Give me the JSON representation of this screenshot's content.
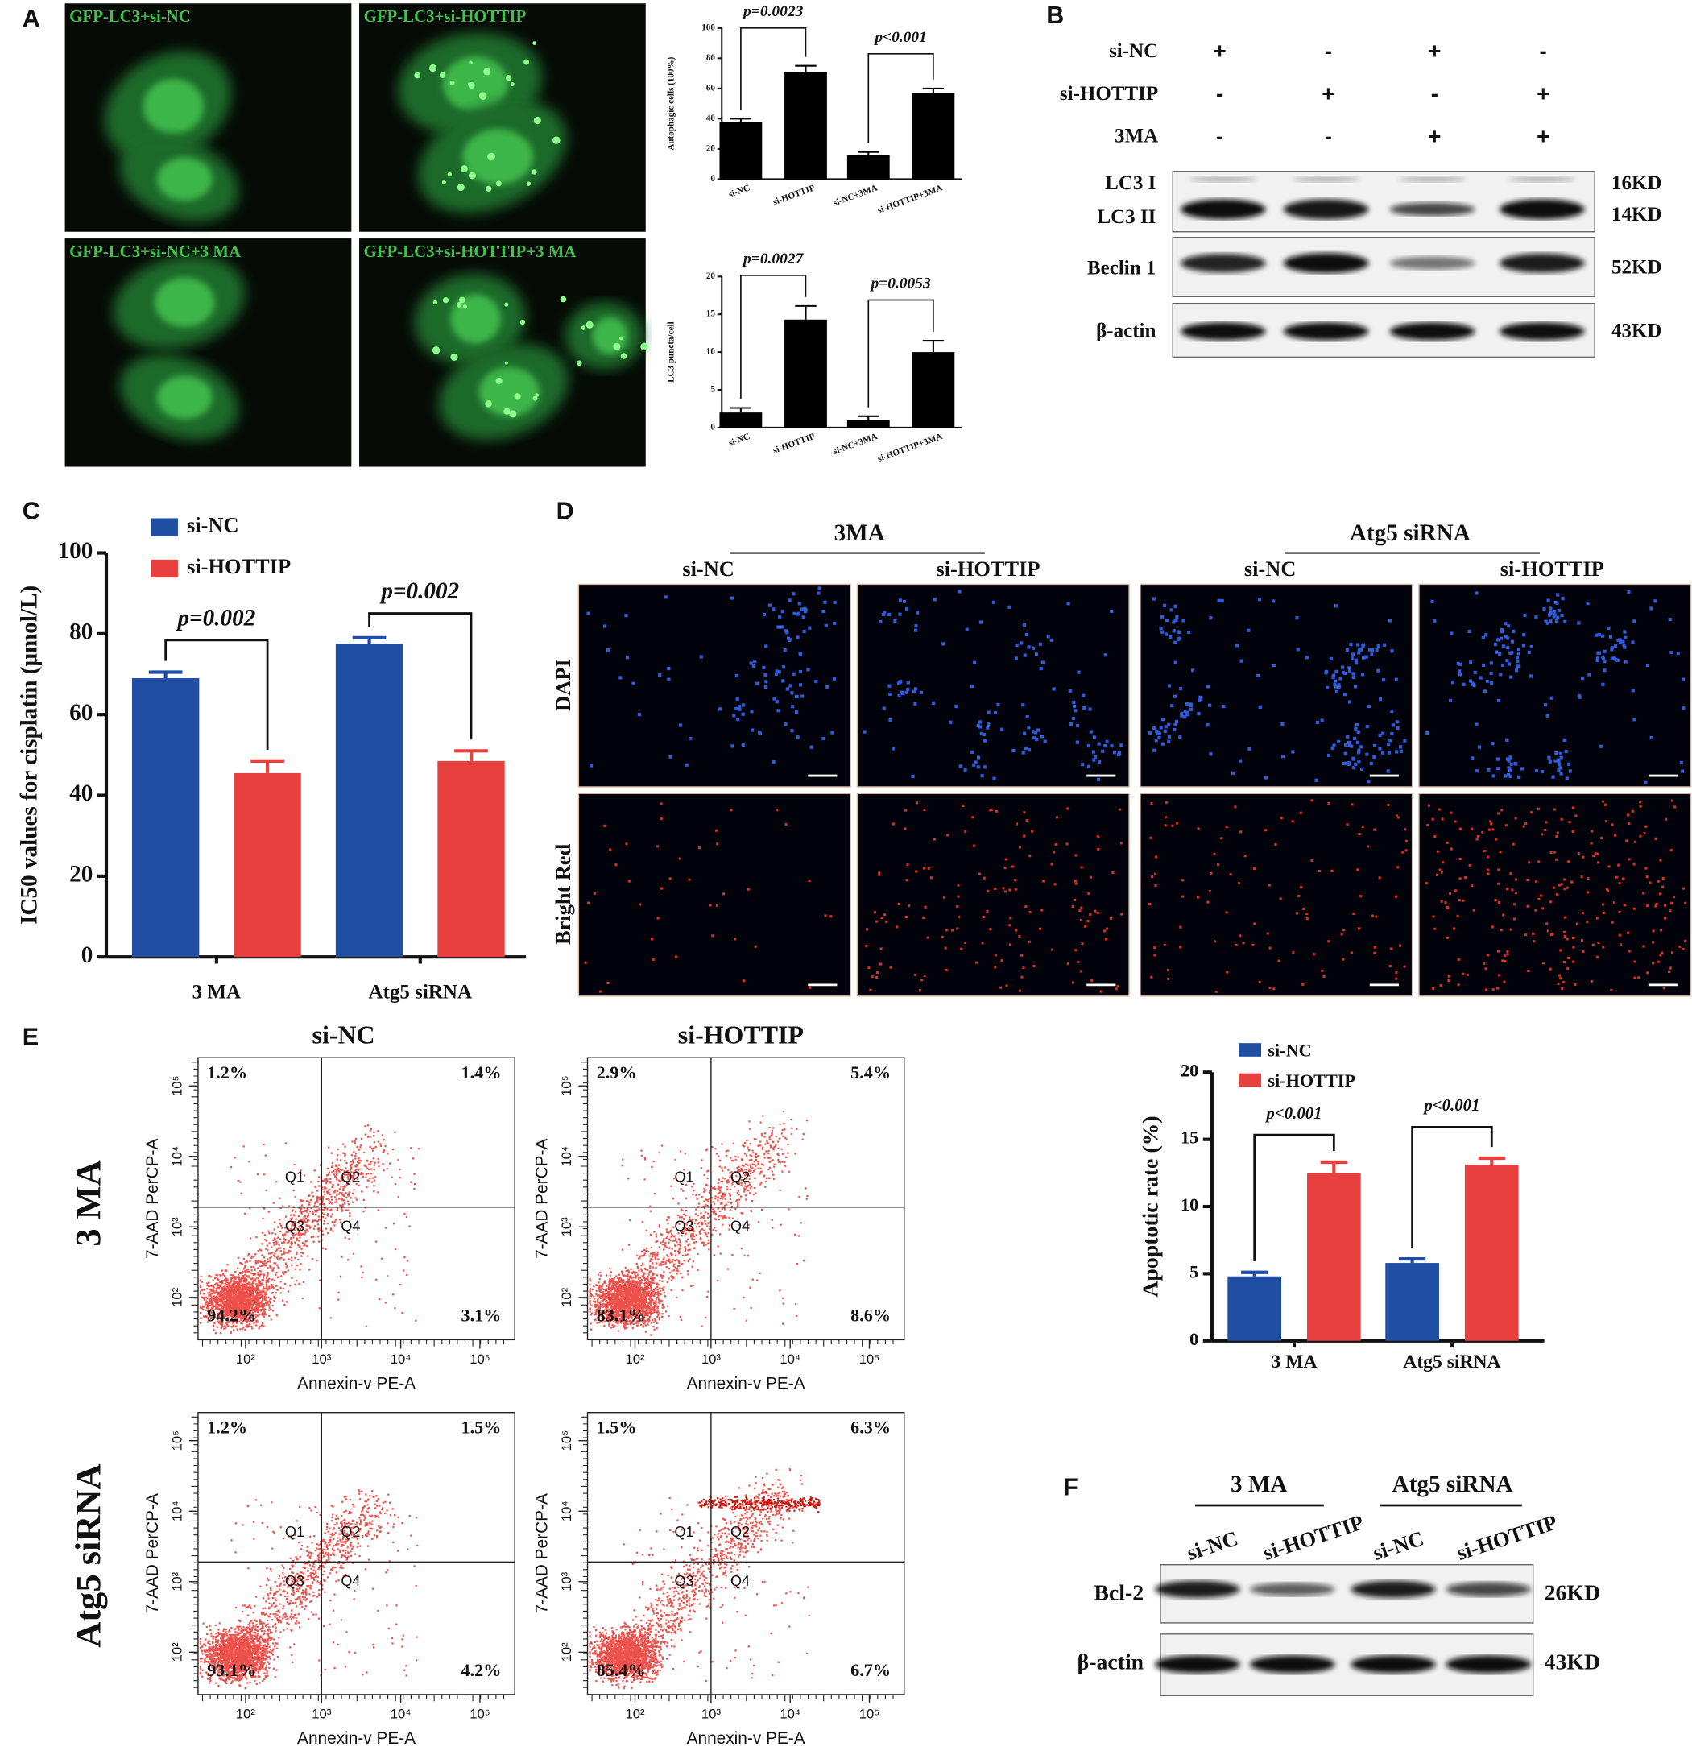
{
  "panel_labels": [
    "A",
    "B",
    "C",
    "D",
    "E",
    "F"
  ],
  "panel_a": {
    "images": [
      "GFP-LC3+si-NC",
      "GFP-LC3+si-HOTTIP",
      "GFP-LC3+si-NC+3 MA",
      "GFP-LC3+si-HOTTIP+3 MA"
    ]
  },
  "panel_b": {
    "rows": [
      {
        "label": "si-NC",
        "signs": [
          "+",
          "-",
          "+",
          "-"
        ]
      },
      {
        "label": "si-HOTTIP",
        "signs": [
          "-",
          "+",
          "-",
          "+"
        ]
      },
      {
        "label": "3MA",
        "signs": [
          "-",
          "-",
          "+",
          "+"
        ]
      }
    ],
    "bands": [
      {
        "label": "LC3 I",
        "size": "16KD"
      },
      {
        "label": "LC3 II",
        "size": "14KD"
      },
      {
        "label": "Beclin 1",
        "size": "52KD"
      },
      {
        "label": "β-actin",
        "size": "43KD"
      }
    ]
  },
  "panel_d": {
    "groups": [
      "3MA",
      "Atg5 siRNA"
    ],
    "columns": [
      "si-NC",
      "si-HOTTIP",
      "si-NC",
      "si-HOTTIP"
    ],
    "rows": [
      "DAPI",
      "Bright Red"
    ]
  },
  "panel_e_flow": {
    "columns": [
      "si-NC",
      "si-HOTTIP"
    ],
    "rows": [
      "3 MA",
      "Atg5 siRNA"
    ],
    "x_label": "Annexin-v PE-A",
    "y_label": "7-AAD PerCP-A",
    "tick_labels": [
      "10²",
      "10³",
      "10⁴",
      "10⁵"
    ],
    "quadrant_names": [
      "Q1",
      "Q2",
      "Q3",
      "Q4"
    ],
    "plots": [
      {
        "quadrants": [
          "1.2%",
          "1.4%",
          "94.2%",
          "3.1%"
        ]
      },
      {
        "quadrants": [
          "2.9%",
          "5.4%",
          "83.1%",
          "8.6%"
        ]
      },
      {
        "quadrants": [
          "1.2%",
          "1.5%",
          "93.1%",
          "4.2%"
        ]
      },
      {
        "quadrants": [
          "1.5%",
          "6.3%",
          "85.4%",
          "6.7%"
        ]
      }
    ]
  },
  "panel_f": {
    "groups": [
      "3 MA",
      "Atg5 siRNA"
    ],
    "columns": [
      "si-NC",
      "si-HOTTIP",
      "si-NC",
      "si-HOTTIP"
    ],
    "bands": [
      {
        "label": "Bcl-2",
        "size": "26KD"
      },
      {
        "label": "β-actin",
        "size": "43KD"
      }
    ]
  },
  "chart_data": [
    {
      "type": "bar",
      "y_label": "Autophagic cells (100%)",
      "categories": [
        "si-NC",
        "si-HOTTIP",
        "si-NC+3MA",
        "si-HOTTIP+3MA"
      ],
      "values": [
        38,
        71,
        16,
        57
      ],
      "errors": [
        2,
        4,
        2,
        3
      ],
      "color": "#000000",
      "ylim": [
        0,
        100
      ],
      "yticks": [
        0,
        20,
        40,
        60,
        80,
        100
      ],
      "annotations": [
        "p=0.0023",
        "p<0.001"
      ]
    },
    {
      "type": "bar",
      "y_label": "LC3 puncta/cell",
      "categories": [
        "si-NC",
        "si-HOTTIP",
        "si-NC+3MA",
        "si-HOTTIP+3MA"
      ],
      "values": [
        2,
        14.3,
        1,
        10
      ],
      "errors": [
        0.6,
        1.8,
        0.5,
        1.5
      ],
      "color": "#000000",
      "ylim": [
        0,
        20
      ],
      "yticks": [
        0,
        5,
        10,
        15,
        20
      ],
      "annotations": [
        "p=0.0027",
        "p=0.0053"
      ]
    },
    {
      "type": "bar",
      "y_label": "IC50 values for cisplatin (μmol/L)",
      "categories": [
        "3 MA",
        "Atg5 siRNA"
      ],
      "series": [
        {
          "name": "si-NC",
          "color": "#1f4ea3",
          "values": [
            69,
            77.5
          ],
          "errors": [
            1.5,
            1.5
          ]
        },
        {
          "name": "si-HOTTIP",
          "color": "#e8403f",
          "values": [
            45.5,
            48.5
          ],
          "errors": [
            3,
            2.5
          ]
        }
      ],
      "ylim": [
        0,
        100
      ],
      "yticks": [
        0,
        20,
        40,
        60,
        80,
        100
      ],
      "annotations": [
        "p=0.002",
        "p=0.002"
      ]
    },
    {
      "type": "bar",
      "y_label": "Apoptotic rate (%)",
      "categories": [
        "3 MA",
        "Atg5 siRNA"
      ],
      "series": [
        {
          "name": "si-NC",
          "color": "#1f4ea3",
          "values": [
            4.8,
            5.8
          ],
          "errors": [
            0.3,
            0.3
          ]
        },
        {
          "name": "si-HOTTIP",
          "color": "#e8403f",
          "values": [
            12.5,
            13.1
          ],
          "errors": [
            0.8,
            0.5
          ]
        }
      ],
      "ylim": [
        0,
        20
      ],
      "yticks": [
        0,
        5,
        10,
        15,
        20
      ],
      "annotations": [
        "p<0.001",
        "p<0.001"
      ]
    }
  ]
}
